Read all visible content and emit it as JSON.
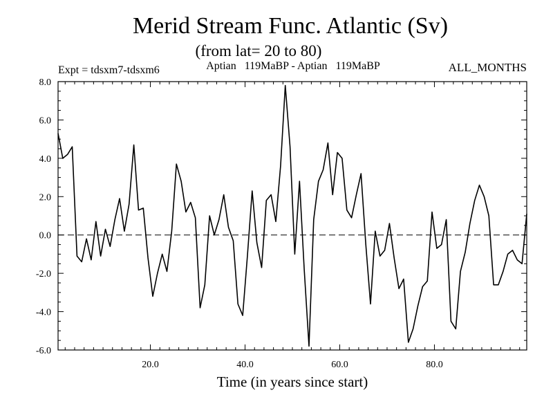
{
  "chart_data": {
    "type": "line",
    "title": "Merid Stream Func. Atlantic (Sv)",
    "subtitle": "(from lat= 20 to 80)",
    "experiment_label": "Expt = tdsxm7-tdsxm6",
    "period_label": "Aptian   119MaBP - Aptian   119MaBP",
    "months_label": "ALL_MONTHS",
    "xlabel": "Time (in years since start)",
    "ylabel": "",
    "xlim": [
      0.5,
      99.5
    ],
    "ylim": [
      -6,
      8
    ],
    "xticks": [
      20,
      40,
      60,
      80
    ],
    "xtick_labels": [
      "20.0",
      "40.0",
      "60.0",
      "80.0"
    ],
    "yticks": [
      -6,
      -4,
      -2,
      0,
      2,
      4,
      6,
      8
    ],
    "ytick_labels": [
      "-6.0",
      "-4.0",
      "-2.0",
      "0.0",
      "2.0",
      "4.0",
      "6.0",
      "8.0"
    ],
    "zero_line": "dashed",
    "series": [
      {
        "name": "Merid Stream Func. Atlantic",
        "x_start": 0.5,
        "x_step": 1,
        "values": [
          5.3,
          4.0,
          4.2,
          4.6,
          -1.1,
          -1.4,
          -0.2,
          -1.3,
          0.7,
          -1.1,
          0.3,
          -0.6,
          0.8,
          1.9,
          0.2,
          1.6,
          4.7,
          1.3,
          1.4,
          -1.2,
          -3.2,
          -2.0,
          -1.0,
          -1.9,
          0.2,
          3.7,
          2.8,
          1.2,
          1.7,
          0.9,
          -3.8,
          -2.6,
          1.0,
          0.0,
          0.8,
          2.1,
          0.4,
          -0.3,
          -3.6,
          -4.2,
          -1.1,
          2.3,
          -0.4,
          -1.7,
          1.8,
          2.1,
          0.7,
          3.6,
          7.8,
          4.6,
          -1.0,
          2.8,
          -1.8,
          -5.8,
          0.8,
          2.8,
          3.4,
          4.8,
          2.1,
          4.3,
          4.0,
          1.3,
          0.9,
          2.1,
          3.2,
          -0.5,
          -3.6,
          0.2,
          -1.1,
          -0.8,
          0.6,
          -1.2,
          -2.8,
          -2.3,
          -5.6,
          -4.9,
          -3.7,
          -2.7,
          -2.4,
          1.2,
          -0.7,
          -0.5,
          0.8,
          -4.5,
          -4.9,
          -1.9,
          -0.9,
          0.6,
          1.8,
          2.6,
          2.0,
          1.0,
          -2.6,
          -2.6,
          -1.9,
          -1.0,
          -0.8,
          -1.3,
          -1.5,
          1.1
        ]
      }
    ]
  }
}
